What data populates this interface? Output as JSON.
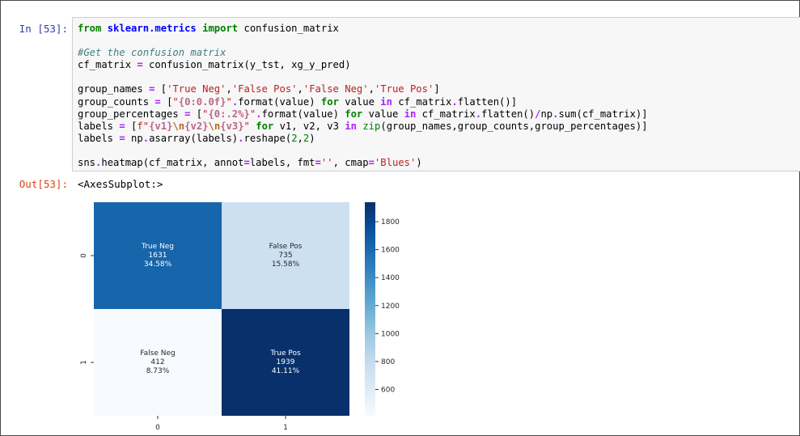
{
  "cell": {
    "in_prompt": "In [53]:",
    "out_prompt": "Out[53]:",
    "output_text": "<AxesSubplot:>"
  },
  "code_lines": [
    "from sklearn.metrics import confusion_matrix",
    "",
    "#Get the confusion matrix",
    "cf_matrix = confusion_matrix(y_tst, xg_y_pred)",
    "",
    "group_names = ['True Neg','False Pos','False Neg','True Pos']",
    "group_counts = [\"{0:0.0f}\".format(value) for value in cf_matrix.flatten()]",
    "group_percentages = [\"{0:.2%}\".format(value) for value in cf_matrix.flatten()/np.sum(cf_matrix)]",
    "labels = [f\"{v1}\\n{v2}\\n{v3}\" for v1, v2, v3 in zip(group_names,group_counts,group_percentages)]",
    "labels = np.asarray(labels).reshape(2,2)",
    "",
    "sns.heatmap(cf_matrix, annot=labels, fmt='', cmap='Blues')"
  ],
  "chart_data": {
    "type": "heatmap",
    "colormap": "Blues",
    "rows": [
      "0",
      "1"
    ],
    "cols": [
      "0",
      "1"
    ],
    "values": [
      [
        1631,
        735
      ],
      [
        412,
        1939
      ]
    ],
    "annotations": [
      [
        [
          "True Neg",
          "1631",
          "34.58%"
        ],
        [
          "False Pos",
          "735",
          "15.58%"
        ]
      ],
      [
        [
          "False Neg",
          "412",
          "8.73%"
        ],
        [
          "True Pos",
          "1939",
          "41.11%"
        ]
      ]
    ],
    "colorbar_ticks": [
      "600",
      "800",
      "1000",
      "1200",
      "1400",
      "1600",
      "1800"
    ],
    "colorbar_range": [
      412,
      1939
    ]
  }
}
